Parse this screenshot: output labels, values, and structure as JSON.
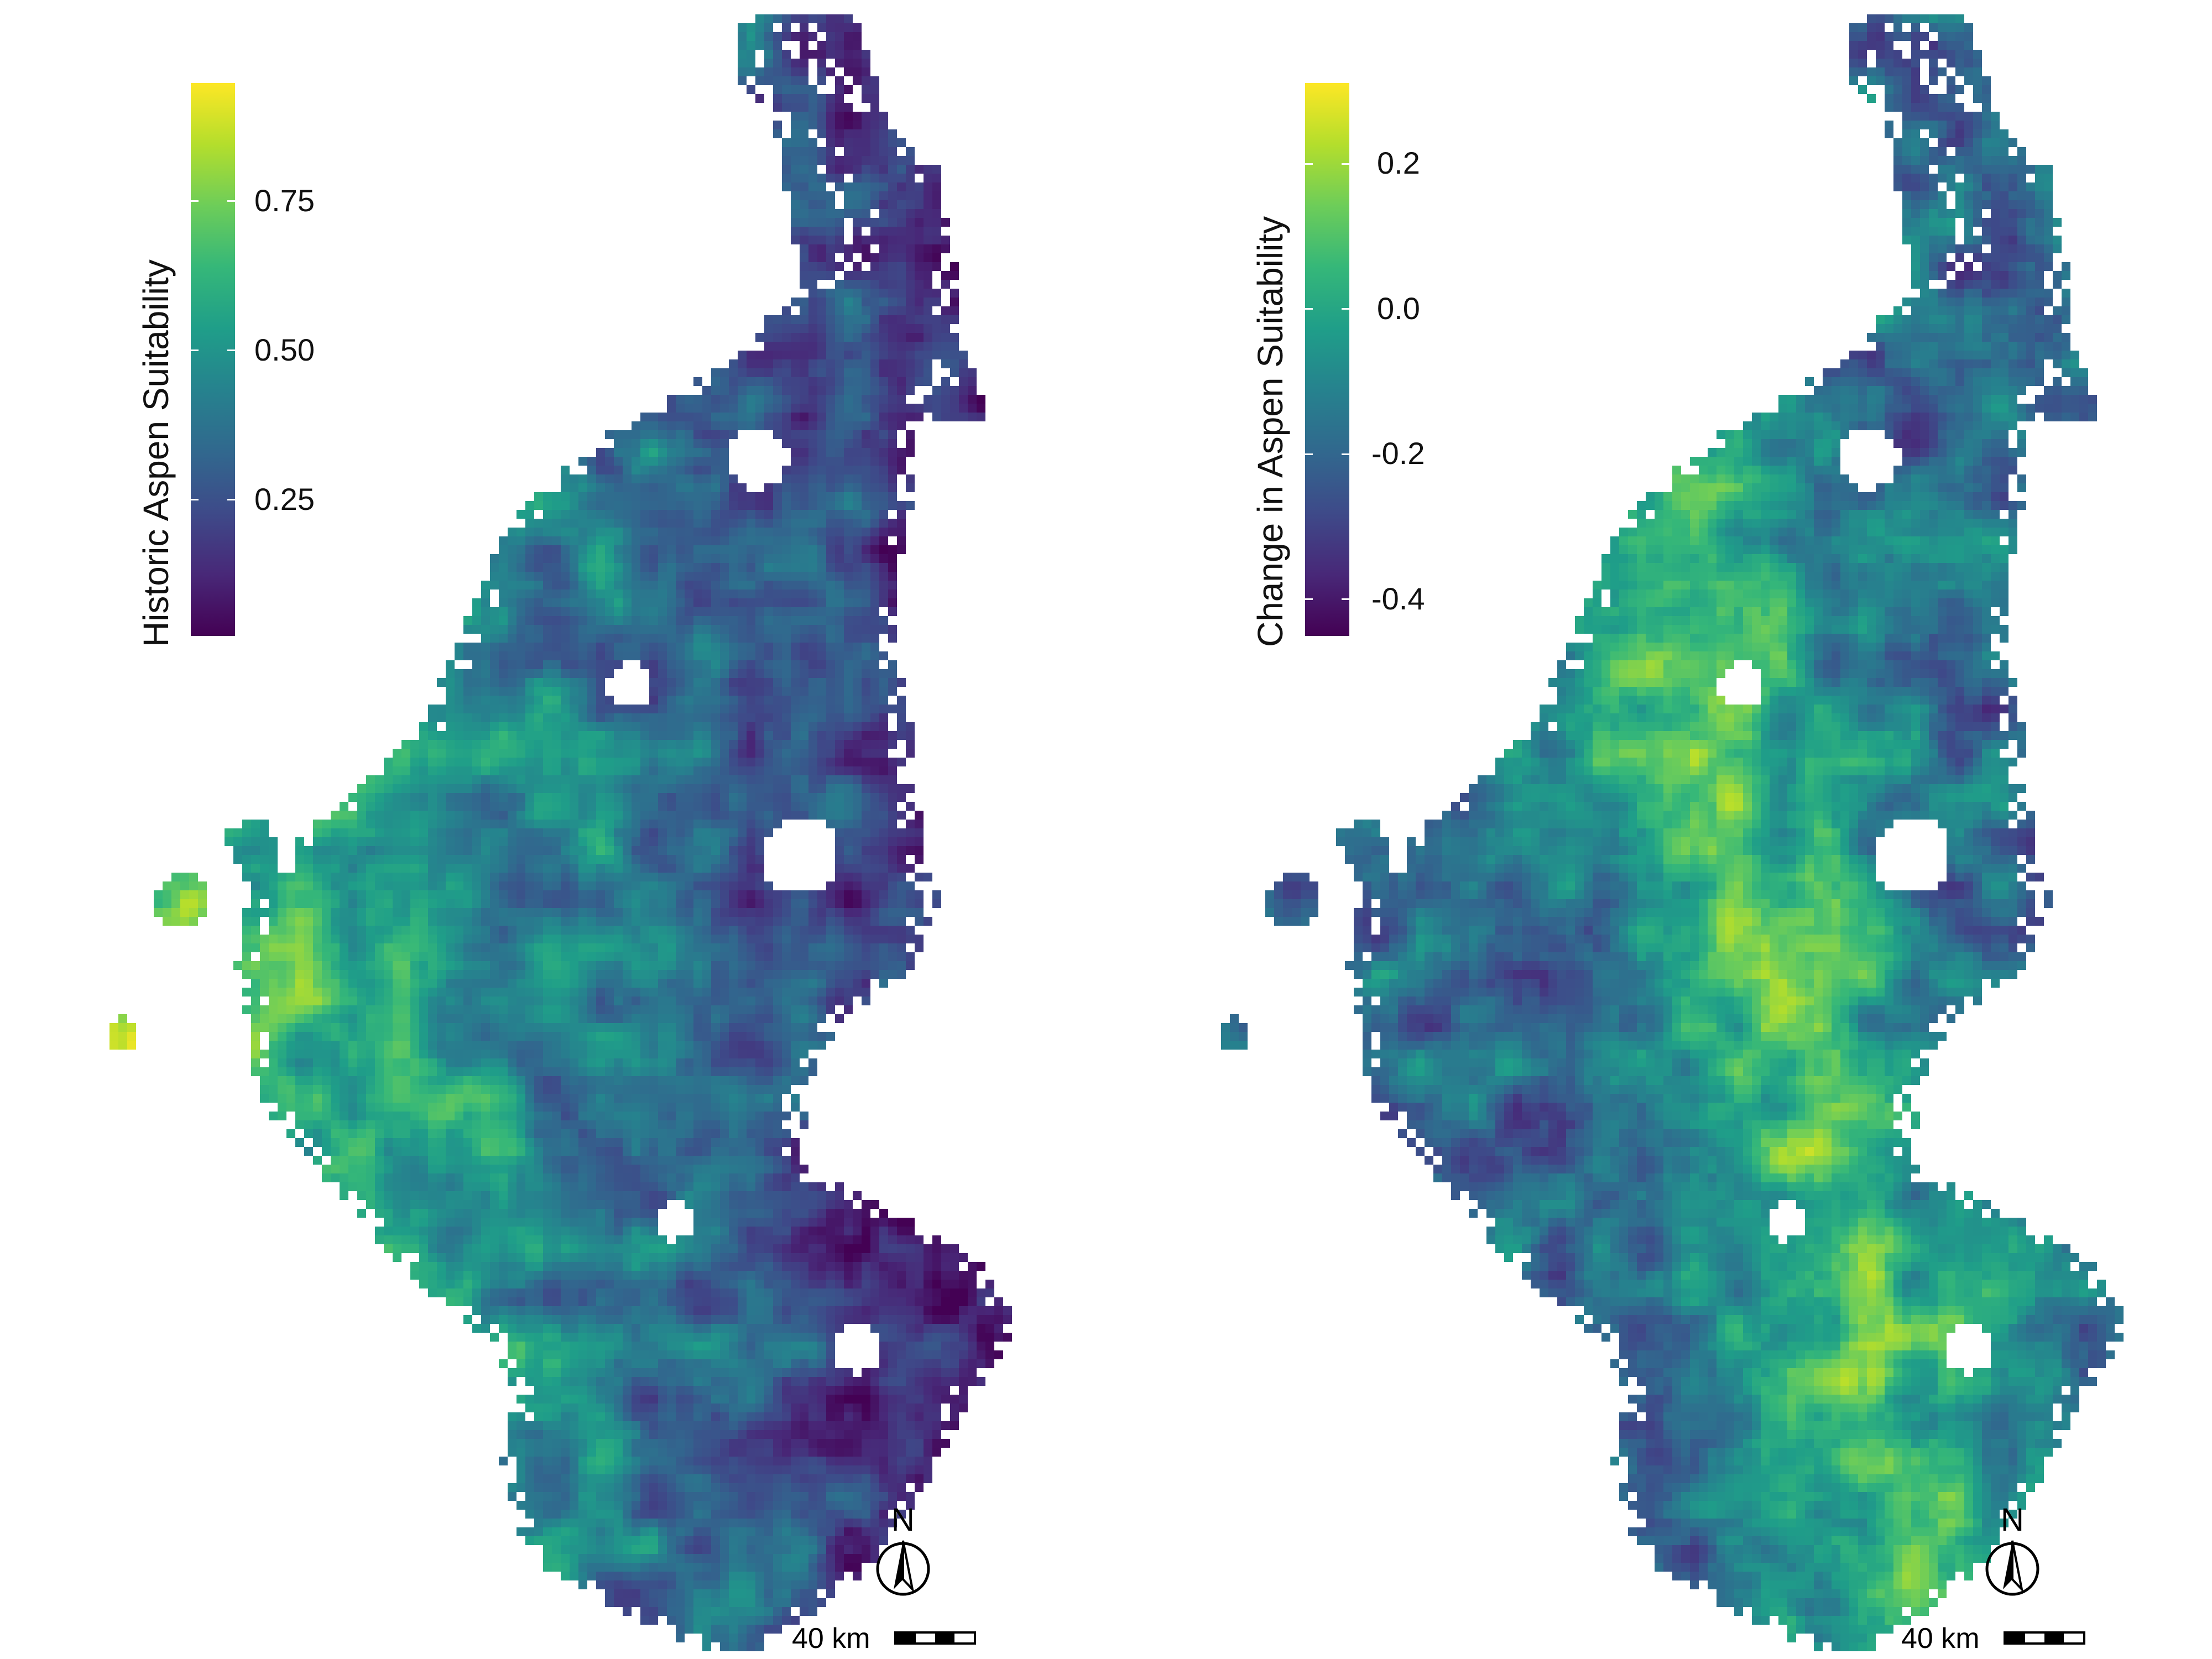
{
  "left_panel": {
    "legend_title": "Historic Aspen Suitability",
    "ticks": [
      {
        "label": "0.75",
        "value": 0.75
      },
      {
        "label": "0.50",
        "value": 0.5
      },
      {
        "label": "0.25",
        "value": 0.25
      }
    ],
    "range": [
      0.0,
      1.0
    ],
    "north_label": "N",
    "scale_label": "40 km"
  },
  "right_panel": {
    "legend_title": "Change in Aspen Suitability",
    "ticks": [
      {
        "label": "0.2",
        "value": 0.2
      },
      {
        "label": "0.0",
        "value": 0.0
      },
      {
        "label": "-0.2",
        "value": -0.2
      },
      {
        "label": "-0.4",
        "value": -0.4
      }
    ],
    "range": [
      -0.46,
      0.31
    ],
    "north_label": "N",
    "scale_label": "40 km"
  },
  "colormap": [
    "#440154",
    "#482878",
    "#3E4A89",
    "#31688E",
    "#26828E",
    "#1F9E89",
    "#35B779",
    "#6DCD59",
    "#B4DE2C",
    "#FDE725"
  ]
}
